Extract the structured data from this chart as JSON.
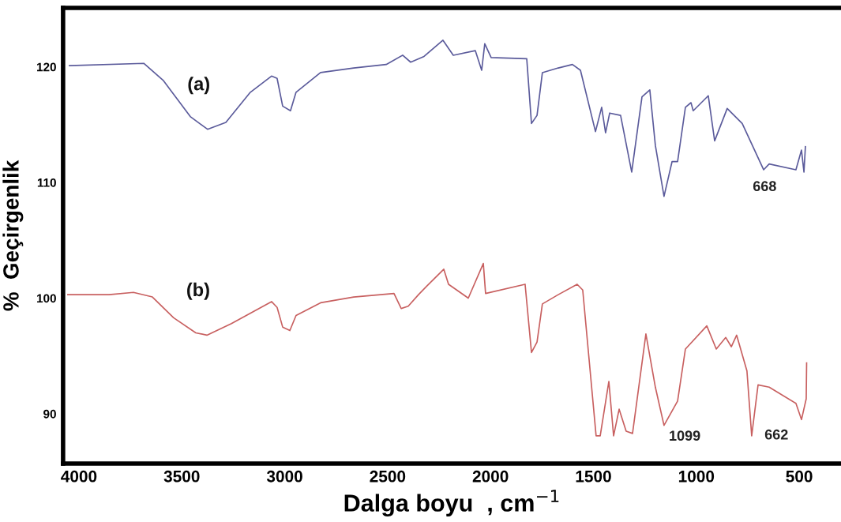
{
  "chart_data": {
    "type": "line",
    "xlabel": "Dalga boyu  , cm$^{−1}$",
    "ylabel": "%  Geçirgenlik",
    "xlim": [
      4077,
      297
    ],
    "ylim": [
      85.7,
      125.1
    ],
    "xticks": [
      4000,
      3500,
      3000,
      2500,
      2000,
      1500,
      1000,
      500
    ],
    "yticks": [
      90,
      100,
      110,
      120
    ],
    "grid": false,
    "legend": false,
    "series": [
      {
        "name": "(a)",
        "color": "#5b5b9b",
        "x": [
          4046,
          3685,
          3589,
          3459,
          3375,
          3286,
          3167,
          3064,
          3037,
          3010,
          2972,
          2945,
          2826,
          2665,
          2507,
          2427,
          2388,
          2323,
          2231,
          2181,
          2074,
          2043,
          2028,
          1997,
          1824,
          1801,
          1774,
          1748,
          1671,
          1602,
          1563,
          1490,
          1460,
          1441,
          1421,
          1368,
          1314,
          1264,
          1226,
          1199,
          1157,
          1118,
          1091,
          1053,
          1026,
          1015,
          942,
          911,
          850,
          777,
          673,
          646,
          516,
          489,
          477,
          470
        ],
        "values": [
          120.1,
          120.3,
          118.8,
          115.7,
          114.6,
          115.2,
          117.8,
          119.2,
          119.0,
          116.6,
          116.2,
          117.8,
          119.5,
          119.9,
          120.2,
          121.0,
          120.4,
          120.9,
          122.3,
          121.0,
          121.4,
          119.7,
          122.0,
          120.8,
          120.7,
          115.1,
          115.8,
          119.5,
          119.9,
          120.2,
          119.7,
          114.4,
          116.5,
          114.3,
          116.0,
          115.8,
          110.9,
          117.4,
          118.0,
          113.2,
          108.8,
          111.8,
          111.8,
          116.5,
          116.9,
          116.2,
          117.5,
          113.6,
          116.4,
          115.1,
          111.1,
          111.6,
          111.1,
          112.8,
          110.9,
          113.1
        ]
      },
      {
        "name": "(b)",
        "color": "#c86060",
        "x": [
          4054,
          3854,
          3735,
          3643,
          3540,
          3432,
          3378,
          3259,
          3064,
          3037,
          3010,
          2975,
          2945,
          2826,
          2665,
          2469,
          2434,
          2400,
          2350,
          2312,
          2227,
          2204,
          2108,
          2035,
          2024,
          1832,
          1801,
          1774,
          1748,
          1671,
          1579,
          1552,
          1487,
          1467,
          1425,
          1402,
          1375,
          1341,
          1310,
          1245,
          1199,
          1157,
          1091,
          1053,
          949,
          903,
          857,
          830,
          804,
          754,
          731,
          700,
          646,
          516,
          489,
          466,
          464
        ],
        "values": [
          100.3,
          100.3,
          100.5,
          100.1,
          98.3,
          97.0,
          96.8,
          97.8,
          99.7,
          99.2,
          97.5,
          97.2,
          98.5,
          99.6,
          100.1,
          100.4,
          99.1,
          99.3,
          100.3,
          101.0,
          102.5,
          101.2,
          100.0,
          103.0,
          100.4,
          101.2,
          95.3,
          96.2,
          99.5,
          100.3,
          101.2,
          100.7,
          88.1,
          88.1,
          92.8,
          88.1,
          90.4,
          88.5,
          88.3,
          96.9,
          92.3,
          89.0,
          91.1,
          95.6,
          97.6,
          95.6,
          96.6,
          95.8,
          96.8,
          93.7,
          88.1,
          92.5,
          92.3,
          90.9,
          89.5,
          91.3,
          94.4
        ]
      }
    ],
    "annotations": [
      {
        "text": "668",
        "x": 668,
        "y": 111.1
      },
      {
        "text": "1099",
        "x": 1099,
        "y": 90.85
      },
      "662"
    ]
  }
}
